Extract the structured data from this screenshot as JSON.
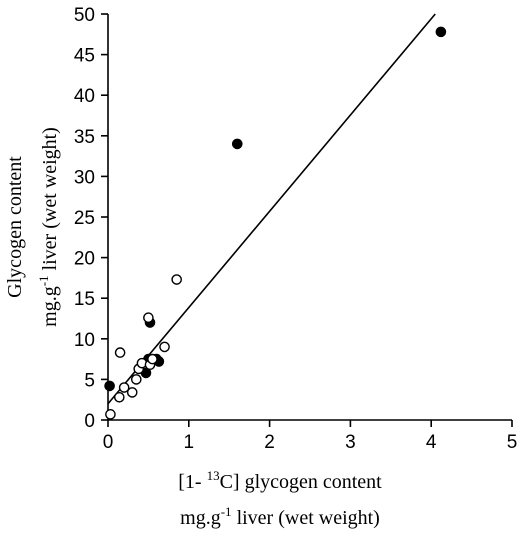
{
  "chart_data": {
    "type": "scatter",
    "title": "",
    "xlabel": {
      "line1_pre": "[1- ",
      "line1_sup": "13",
      "line1_post": "C] glycogen content",
      "line2_pre": "mg.g",
      "line2_sup": "-1",
      "line2_post": " liver (wet weight)"
    },
    "ylabel": {
      "line1": "Glycogen content",
      "line2_pre": "mg.g",
      "line2_sup": "-1",
      "line2_post": " liver (wet weight)"
    },
    "xlim": [
      0,
      5
    ],
    "ylim": [
      0,
      50
    ],
    "xticks": [
      "0",
      "1",
      "2",
      "3",
      "4",
      "5"
    ],
    "yticks": [
      "0",
      "5",
      "10",
      "15",
      "20",
      "25",
      "30",
      "35",
      "40",
      "45",
      "50"
    ],
    "grid": false,
    "series": [
      {
        "marker": "filled-circle",
        "x": [
          0.02,
          0.47,
          0.5,
          0.52,
          0.6,
          0.63,
          1.6,
          4.12
        ],
        "y": [
          4.2,
          5.8,
          7.5,
          12.0,
          7.5,
          7.2,
          34.0,
          47.8
        ]
      },
      {
        "marker": "open-circle",
        "x": [
          0.03,
          0.14,
          0.15,
          0.2,
          0.3,
          0.35,
          0.38,
          0.42,
          0.5,
          0.52,
          0.55,
          0.7,
          0.85
        ],
        "y": [
          0.7,
          2.8,
          8.3,
          4.0,
          3.4,
          5.0,
          6.3,
          7.0,
          12.6,
          6.8,
          7.5,
          9.0,
          17.3
        ]
      }
    ],
    "fit_line": {
      "x": [
        0,
        4.05
      ],
      "y": [
        2.0,
        50.0
      ]
    }
  }
}
